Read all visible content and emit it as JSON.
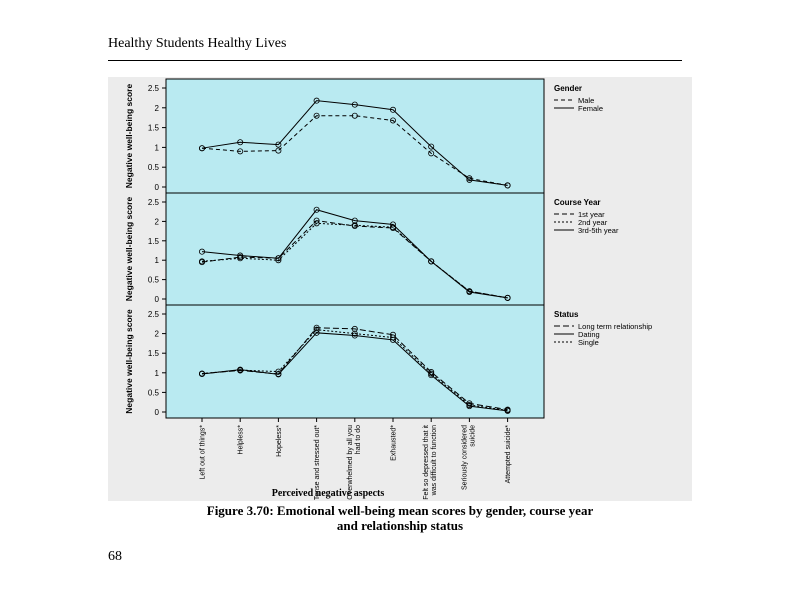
{
  "document": {
    "header": "Healthy Students Healthy Lives",
    "caption_line1": "Figure 3.70: Emotional well-being mean scores by gender, course year",
    "caption_line2": "and relationship status",
    "page_number": "68"
  },
  "colors": {
    "panel_background": "#b9eaf1",
    "outer_background": "#ececec",
    "line": "#000000"
  },
  "x_axis": {
    "title": "Perceived negative aspects",
    "categories": [
      [
        "Left out of things*"
      ],
      [
        "Helpless*"
      ],
      [
        "Hopeless*"
      ],
      [
        "Tense and stressed out*"
      ],
      [
        "Overwhelmed by all you",
        "had to do"
      ],
      [
        "Exhausted*"
      ],
      [
        "Felt so depressed that it",
        "was difficult to function"
      ],
      [
        "Seriously considered",
        "suicide"
      ],
      [
        "Attempted suicide*"
      ]
    ]
  },
  "chart_data": [
    {
      "type": "line",
      "panel": "gender",
      "ylabel": "Negative well-being score",
      "ylim": [
        0,
        2.5
      ],
      "yticks": [
        "0",
        "0.5",
        "1",
        "1.5",
        "2",
        "2.5"
      ],
      "legend_title": "Gender",
      "legend_placement": "right",
      "series": [
        {
          "name": "Male",
          "dash": "4,3",
          "values": [
            0.98,
            0.9,
            0.92,
            1.8,
            1.8,
            1.68,
            0.85,
            0.22,
            0.04
          ]
        },
        {
          "name": "Female",
          "dash": "",
          "values": [
            0.98,
            1.13,
            1.07,
            2.18,
            2.08,
            1.95,
            1.02,
            0.18,
            0.04
          ]
        }
      ]
    },
    {
      "type": "line",
      "panel": "course_year",
      "ylabel": "Negative well-being score",
      "ylim": [
        0,
        2.5
      ],
      "yticks": [
        "0",
        "0.5",
        "1",
        "1.5",
        "2",
        "2.5"
      ],
      "legend_title": "Course Year",
      "legend_placement": "right",
      "series": [
        {
          "name": "1st year",
          "dash": "5,3",
          "values": [
            0.95,
            1.08,
            1.05,
            2.02,
            1.88,
            1.83,
            0.97,
            0.2,
            0.03
          ]
        },
        {
          "name": "2nd year",
          "dash": "2,2",
          "values": [
            0.97,
            1.05,
            1.0,
            1.95,
            1.9,
            1.85,
            0.97,
            0.2,
            0.03
          ]
        },
        {
          "name": "3rd-5th year",
          "dash": "",
          "values": [
            1.22,
            1.12,
            1.05,
            2.3,
            2.02,
            1.92,
            0.97,
            0.18,
            0.03
          ]
        }
      ]
    },
    {
      "type": "line",
      "panel": "status",
      "ylabel": "Negative well-being score",
      "ylim": [
        0,
        2.5
      ],
      "yticks": [
        "0",
        "0.5",
        "1",
        "1.5",
        "2",
        "2.5"
      ],
      "legend_title": "Status",
      "legend_placement": "right",
      "series": [
        {
          "name": "Long term relationship",
          "dash": "6,3",
          "values": [
            0.98,
            1.06,
            0.97,
            2.15,
            2.12,
            1.97,
            1.02,
            0.22,
            0.06
          ]
        },
        {
          "name": "Dating",
          "dash": "",
          "values": [
            0.97,
            1.08,
            0.96,
            2.02,
            1.95,
            1.84,
            0.94,
            0.15,
            0.03
          ]
        },
        {
          "name": "Single",
          "dash": "2,2",
          "values": [
            0.98,
            1.07,
            1.03,
            2.1,
            2.0,
            1.9,
            0.98,
            0.18,
            0.04
          ]
        }
      ]
    }
  ]
}
